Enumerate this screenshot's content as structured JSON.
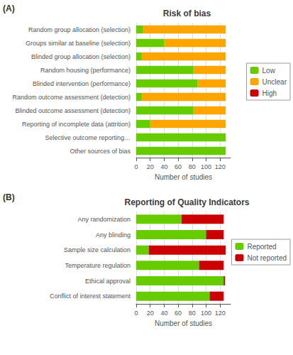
{
  "chart_data": [
    {
      "type": "bar",
      "orientation": "horizontal",
      "stacked": true,
      "title": "Risk of bias",
      "xlabel": "Number of studies",
      "annotations": [
        "(A)"
      ],
      "categories": [
        "Random group allocation (selection)",
        "Groups similar at baseline (selection)",
        "Blinded group allocation (selection)",
        "Random housing (performance)",
        "Blinded intervention (performance)",
        "Random outcome assessment (detection)",
        "Blinded outcome assessment (detection)",
        "Reporting of incomplete data (attrition)",
        "Selective outcome reporting…",
        "Other sources of bias"
      ],
      "series": [
        {
          "name": "Low",
          "color": "#66CC00",
          "values": [
            10,
            40,
            8,
            82,
            88,
            8,
            82,
            20,
            128,
            128
          ]
        },
        {
          "name": "Unclear",
          "color": "#FFA500",
          "values": [
            118,
            88,
            120,
            46,
            40,
            120,
            46,
            108,
            0,
            0
          ]
        },
        {
          "name": "High",
          "color": "#CC0000",
          "values": [
            0,
            0,
            0,
            0,
            0,
            0,
            0,
            0,
            0,
            0
          ]
        }
      ],
      "xlim": [
        0,
        135
      ],
      "xticks": [
        0,
        20,
        40,
        60,
        80,
        100,
        120
      ],
      "grid": true,
      "legend": "right"
    },
    {
      "type": "bar",
      "orientation": "horizontal",
      "stacked": true,
      "title": "Reporting of Quality Indicators",
      "xlabel": "Number of studies",
      "annotations": [
        "(B)"
      ],
      "categories": [
        "Any randomization",
        "Any blinding",
        "Sample size calculation",
        "Temperature regulation",
        "Ethical approval",
        "Conflict of interest statement"
      ],
      "series": [
        {
          "name": "Reported",
          "color": "#66CC00",
          "values": [
            65,
            100,
            18,
            90,
            125,
            105
          ]
        },
        {
          "name": "Not reported",
          "color": "#CC0000",
          "values": [
            60,
            25,
            110,
            35,
            2,
            20
          ]
        }
      ],
      "xlim": [
        0,
        135
      ],
      "xticks": [
        0,
        20,
        40,
        60,
        80,
        100,
        120
      ],
      "grid": true,
      "legend": "right"
    }
  ]
}
